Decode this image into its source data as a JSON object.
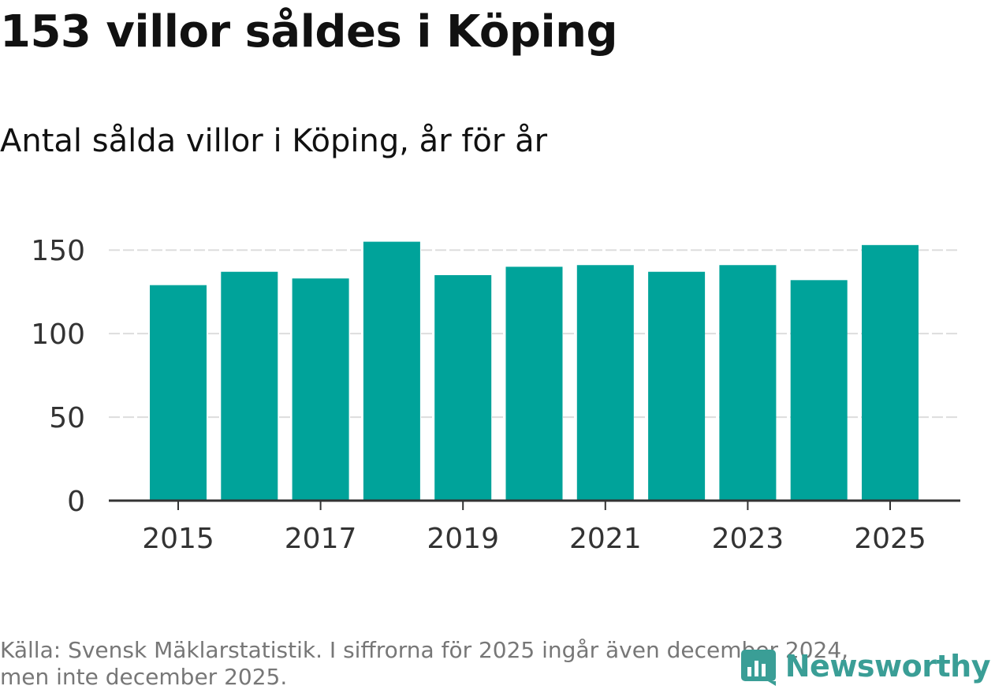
{
  "title": "153 villor såldes i Köping",
  "subtitle": "Antal sålda villor i Köping, år för år",
  "source_line1": "Källa: Svensk Mäklarstatistik. I siffrorna för 2025 ingår även december 2024,",
  "source_line2": "men inte december 2025.",
  "logo_text": "Newsworthy",
  "colors": {
    "bar": "#00a39a",
    "grid": "#dddddd",
    "axis": "#333333",
    "logo": "#3a9e96"
  },
  "chart_data": {
    "type": "bar",
    "title": "Antal sålda villor i Köping, år för år",
    "xlabel": "",
    "ylabel": "",
    "categories": [
      "2015",
      "2016",
      "2017",
      "2018",
      "2019",
      "2020",
      "2021",
      "2022",
      "2023",
      "2024",
      "2025"
    ],
    "values": [
      129,
      137,
      133,
      155,
      135,
      140,
      141,
      137,
      141,
      132,
      153
    ],
    "ylim": [
      0,
      160
    ],
    "yticks": [
      0,
      50,
      100,
      150
    ],
    "xtick_labels": [
      "2015",
      "2017",
      "2019",
      "2021",
      "2023",
      "2025"
    ],
    "grid": true
  }
}
